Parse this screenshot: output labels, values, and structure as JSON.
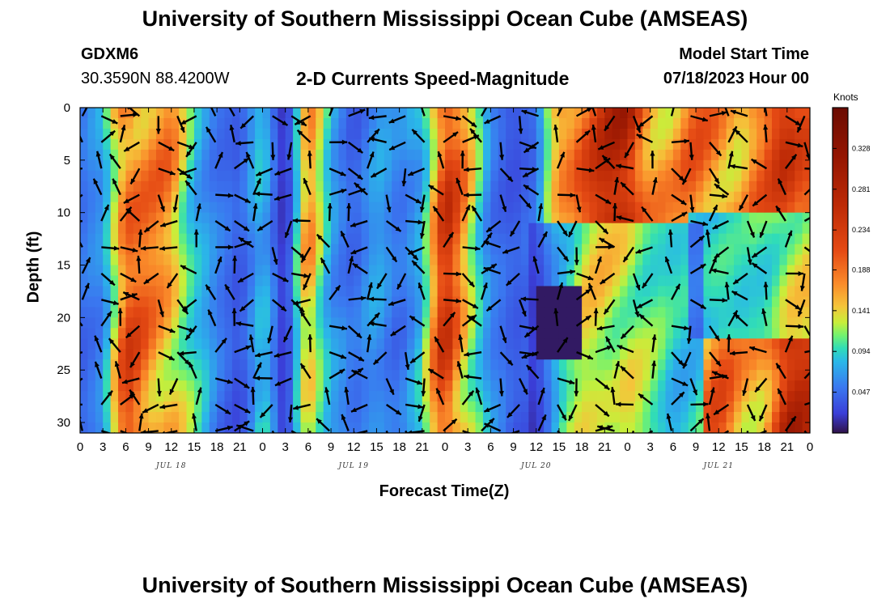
{
  "header": {
    "title": "University of Southern Mississippi Ocean Cube (AMSEAS)",
    "station": "GDXM6",
    "coords": "30.3590N  88.4200W",
    "plot_title": "2-D Currents Speed-Magnitude",
    "start_label": "Model Start Time",
    "start_value": "07/18/2023 Hour 00"
  },
  "footer": {
    "title": "University of Southern Mississippi Ocean Cube (AMSEAS)"
  },
  "colorbar": {
    "unit": "Knots",
    "ticks": [
      "0.328",
      "0.281",
      "0.234",
      "0.188",
      "0.141",
      "0.094",
      "0.047"
    ],
    "tick_values": [
      0.328,
      0.281,
      0.234,
      0.188,
      0.141,
      0.094,
      0.047
    ],
    "range": [
      0,
      0.375
    ]
  },
  "chart_data": {
    "type": "heatmap",
    "title": "2-D Currents Speed-Magnitude",
    "xlabel": "Forecast Time(Z)",
    "ylabel": "Depth (ft)",
    "xlim": [
      0,
      96
    ],
    "ylim": [
      0,
      31
    ],
    "x_ticks": [
      0,
      3,
      6,
      9,
      12,
      15,
      18,
      21,
      24,
      27,
      30,
      33,
      36,
      39,
      42,
      45,
      48,
      51,
      54,
      57,
      60,
      63,
      66,
      69,
      72,
      75,
      78,
      81,
      84,
      87,
      90,
      93,
      96
    ],
    "x_tick_labels": [
      "0",
      "3",
      "6",
      "9",
      "12",
      "15",
      "18",
      "21",
      "0",
      "3",
      "6",
      "9",
      "12",
      "15",
      "18",
      "21",
      "0",
      "3",
      "6",
      "9",
      "12",
      "15",
      "18",
      "21",
      "0",
      "3",
      "6",
      "9",
      "12",
      "15",
      "18",
      "21",
      "0"
    ],
    "day_labels": [
      {
        "hour": 12,
        "label": "JUL 18"
      },
      {
        "hour": 36,
        "label": "JUL 19"
      },
      {
        "hour": 60,
        "label": "JUL 20"
      },
      {
        "hour": 84,
        "label": "JUL 21"
      }
    ],
    "y_ticks": [
      0,
      5,
      10,
      15,
      20,
      25,
      30
    ],
    "y_tick_labels": [
      "0",
      "5",
      "10",
      "15",
      "20",
      "25",
      "30"
    ],
    "colorbar_unit": "Knots",
    "colorbar_ticks": [
      0.328,
      0.281,
      0.234,
      0.188,
      0.141,
      0.094,
      0.047
    ],
    "colorbar_range": [
      0,
      0.375
    ],
    "speed_profile_knots": [
      {
        "hour": 0,
        "speed": 0.05
      },
      {
        "hour": 3,
        "speed": 0.08
      },
      {
        "hour": 6,
        "speed": 0.24
      },
      {
        "hour": 9,
        "speed": 0.2
      },
      {
        "hour": 12,
        "speed": 0.19
      },
      {
        "hour": 15,
        "speed": 0.11
      },
      {
        "hour": 18,
        "speed": 0.06
      },
      {
        "hour": 21,
        "speed": 0.04
      },
      {
        "hour": 24,
        "speed": 0.11
      },
      {
        "hour": 27,
        "speed": 0.01
      },
      {
        "hour": 30,
        "speed": 0.19
      },
      {
        "hour": 33,
        "speed": 0.09
      },
      {
        "hour": 36,
        "speed": 0.05
      },
      {
        "hour": 39,
        "speed": 0.08
      },
      {
        "hour": 42,
        "speed": 0.06
      },
      {
        "hour": 45,
        "speed": 0.1
      },
      {
        "hour": 48,
        "speed": 0.27
      },
      {
        "hour": 51,
        "speed": 0.17
      },
      {
        "hour": 54,
        "speed": 0.07
      },
      {
        "hour": 57,
        "speed": 0.04
      },
      {
        "hour": 60,
        "speed": 0.05
      },
      {
        "hour": 63,
        "speed": 0.2
      },
      {
        "hour": 66,
        "speed": 0.26
      },
      {
        "hour": 69,
        "speed": 0.28
      },
      {
        "hour": 72,
        "speed": 0.3
      },
      {
        "hour": 75,
        "speed": 0.22
      },
      {
        "hour": 78,
        "speed": 0.18
      },
      {
        "hour": 81,
        "speed": 0.21
      },
      {
        "hour": 84,
        "speed": 0.22
      },
      {
        "hour": 87,
        "speed": 0.18
      },
      {
        "hour": 90,
        "speed": 0.21
      },
      {
        "hour": 93,
        "speed": 0.3
      },
      {
        "hour": 96,
        "speed": 0.27
      }
    ]
  }
}
